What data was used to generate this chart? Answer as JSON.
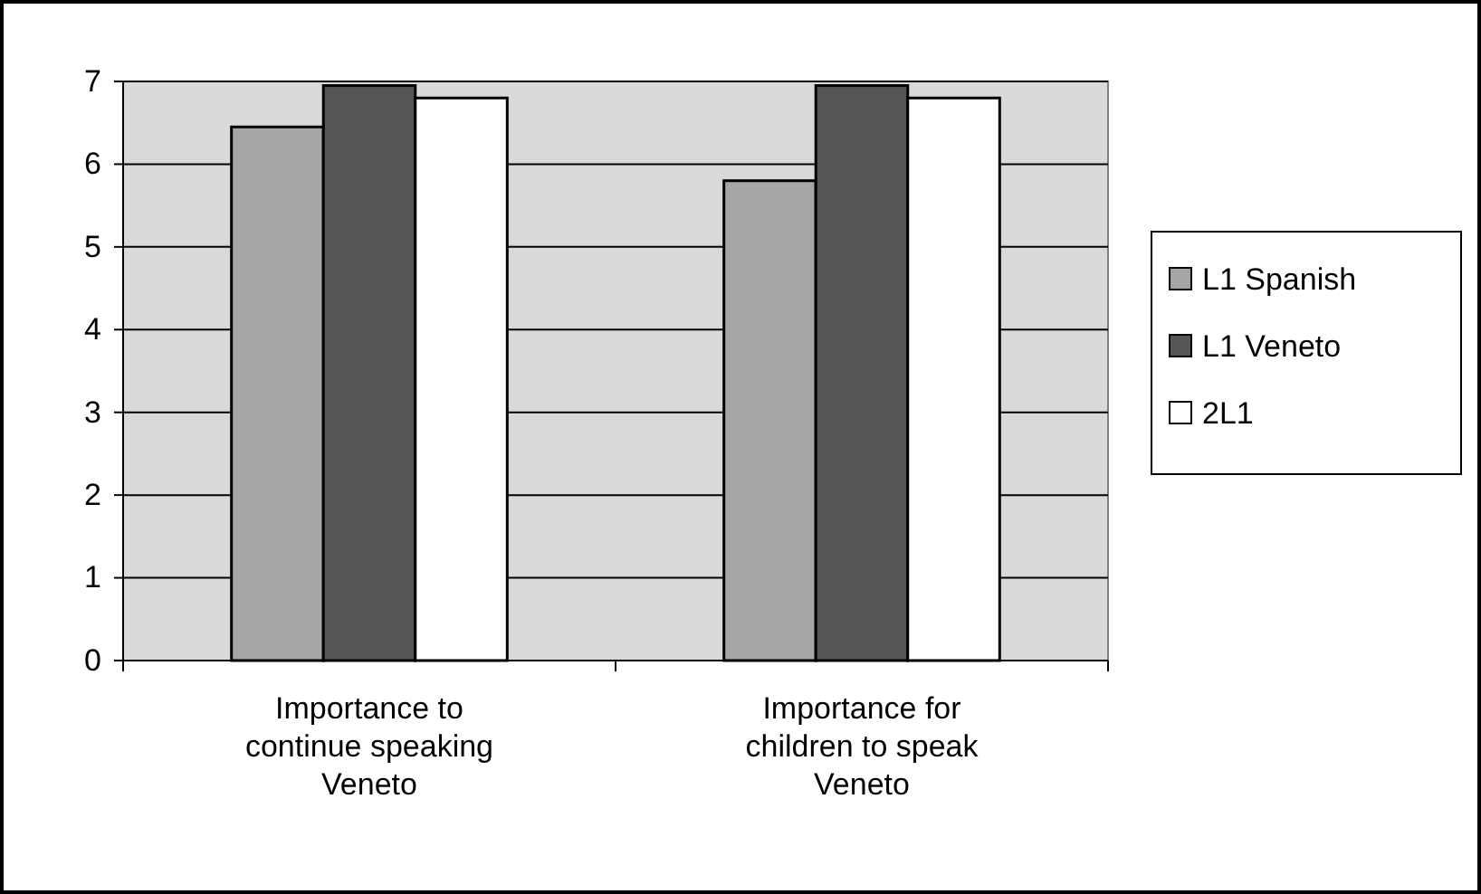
{
  "chart_data": {
    "type": "bar",
    "categories": [
      "Importance to continue speaking Veneto",
      "Importance for children to speak Veneto"
    ],
    "series": [
      {
        "name": "L1 Spanish",
        "color": "#a6a6a6",
        "values": [
          6.45,
          5.8
        ]
      },
      {
        "name": "L1 Veneto",
        "color": "#555555",
        "values": [
          6.95,
          6.95
        ]
      },
      {
        "name": "2L1",
        "color": "#ffffff",
        "values": [
          6.8,
          6.8
        ]
      }
    ],
    "ylim": [
      0,
      7
    ],
    "yticks": [
      0,
      1,
      2,
      3,
      4,
      5,
      6,
      7
    ],
    "grid": "y",
    "legend": "right"
  }
}
